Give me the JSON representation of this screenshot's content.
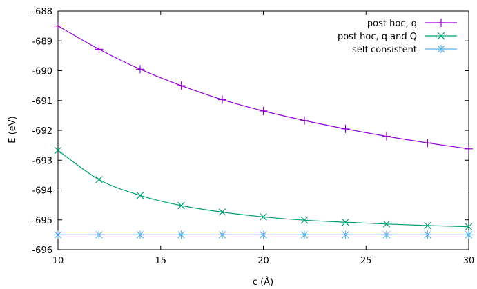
{
  "chart_data": {
    "type": "line",
    "title": "",
    "xlabel": "c (Å)",
    "ylabel": "E (eV)",
    "xlim": [
      10,
      30
    ],
    "ylim": [
      -696,
      -688
    ],
    "xticks": [
      10,
      15,
      20,
      25,
      30
    ],
    "yticks": [
      -696,
      -695,
      -694,
      -693,
      -692,
      -691,
      -690,
      -689,
      -688
    ],
    "grid": false,
    "legend_position": "top-right",
    "series": [
      {
        "name": "post hoc, q",
        "color": "#9400d3",
        "marker": "plus",
        "x": [
          10,
          12,
          14,
          16,
          18,
          20,
          22,
          24,
          26,
          28,
          30
        ],
        "y": [
          -688.5,
          -689.28,
          -689.95,
          -690.5,
          -690.97,
          -691.35,
          -691.67,
          -691.95,
          -692.2,
          -692.42,
          -692.62
        ]
      },
      {
        "name": "post hoc, q and Q",
        "color": "#009e73",
        "marker": "cross",
        "x": [
          10,
          12,
          14,
          16,
          18,
          20,
          22,
          24,
          26,
          28,
          30
        ],
        "y": [
          -692.67,
          -693.65,
          -694.18,
          -694.52,
          -694.74,
          -694.9,
          -695.01,
          -695.08,
          -695.14,
          -695.19,
          -695.23
        ]
      },
      {
        "name": "self consistent",
        "color": "#56b4e9",
        "marker": "star",
        "x": [
          10,
          12,
          14,
          16,
          18,
          20,
          22,
          24,
          26,
          28,
          30
        ],
        "y": [
          -695.5,
          -695.5,
          -695.5,
          -695.5,
          -695.5,
          -695.5,
          -695.5,
          -695.5,
          -695.5,
          -695.5,
          -695.5
        ]
      }
    ]
  }
}
